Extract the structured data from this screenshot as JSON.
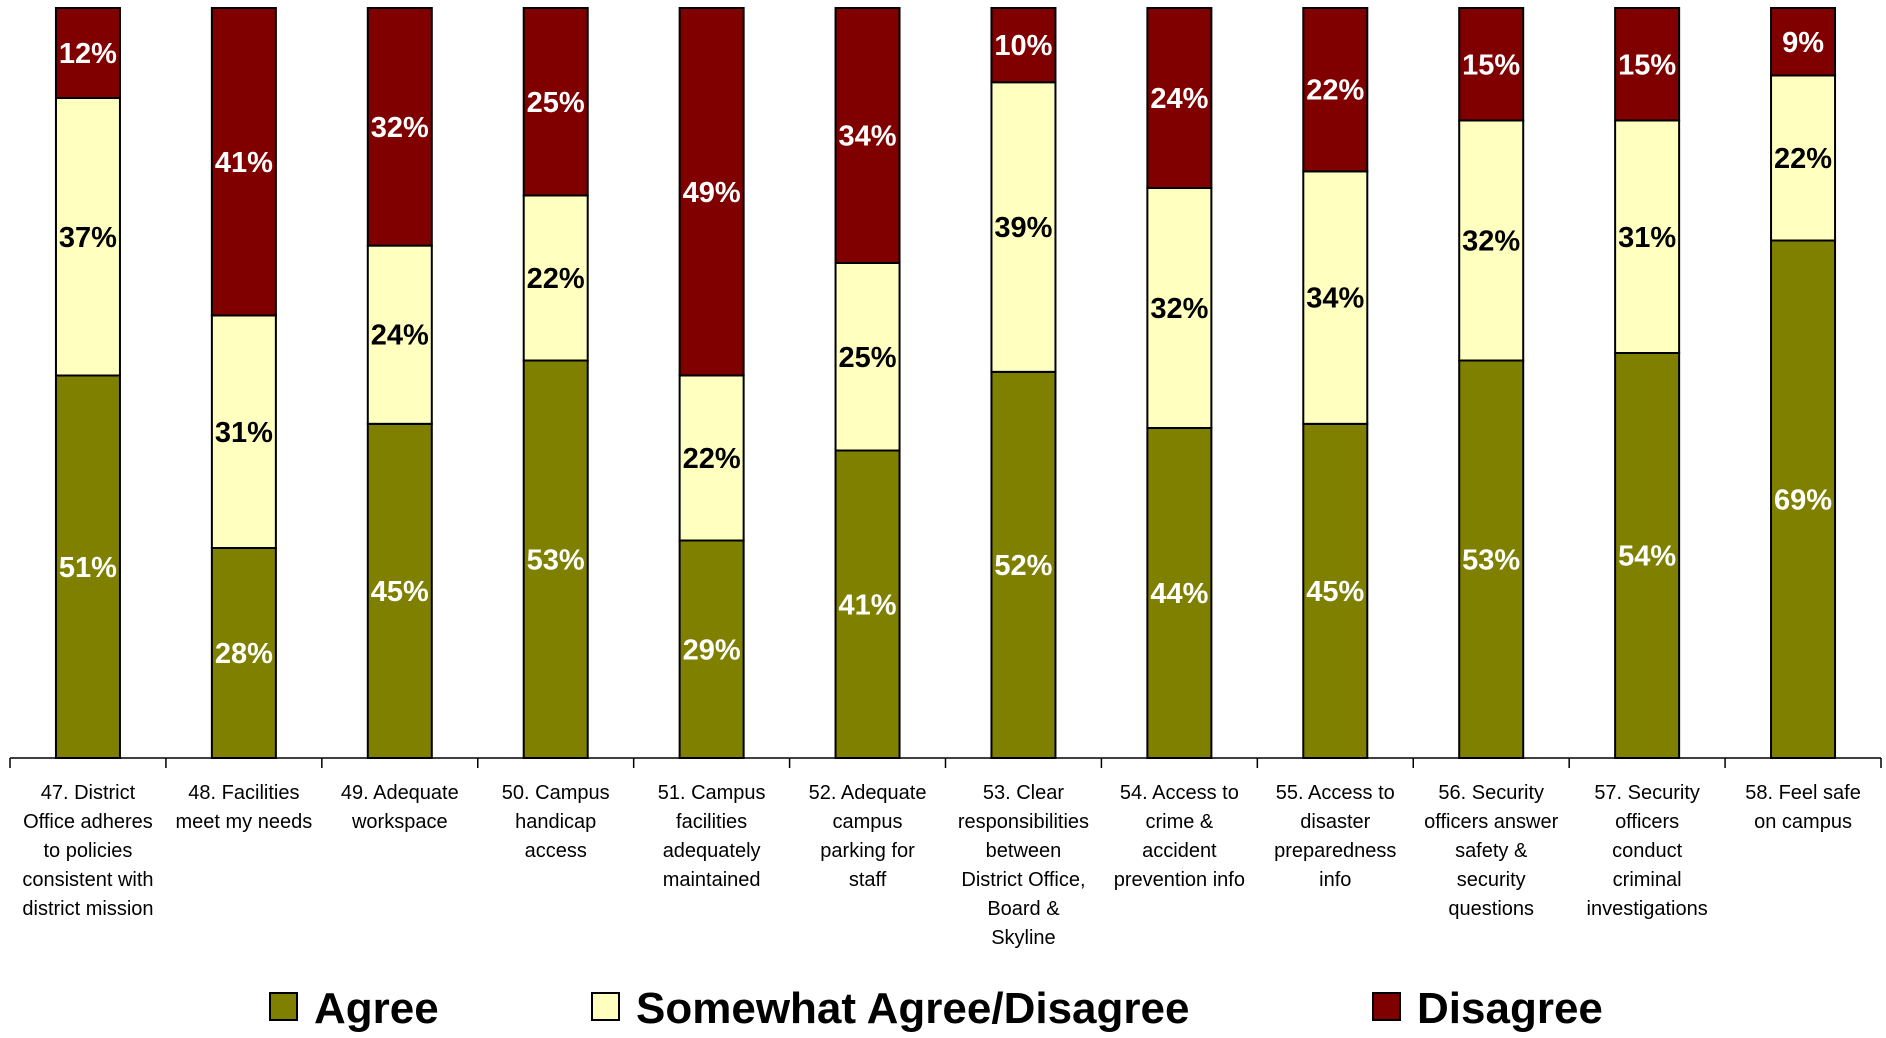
{
  "chart_data": {
    "type": "bar",
    "stacked": true,
    "percent_stacked": true,
    "grid": false,
    "legend_position": "bottom",
    "categories": [
      [
        "47. District",
        "Office adheres",
        "to policies",
        "consistent with",
        "district mission"
      ],
      [
        "48. Facilities",
        "meet my needs"
      ],
      [
        "49. Adequate",
        "workspace"
      ],
      [
        "50. Campus",
        "handicap",
        "access"
      ],
      [
        "51. Campus",
        "facilities",
        "adequately",
        "maintained"
      ],
      [
        "52. Adequate",
        "campus",
        "parking for",
        "staff"
      ],
      [
        "53. Clear",
        "responsibilities",
        "between",
        "District Office,",
        "Board &",
        "Skyline"
      ],
      [
        "54. Access to",
        "crime &",
        "accident",
        "prevention info"
      ],
      [
        "55. Access to",
        "disaster",
        "preparedness",
        "info"
      ],
      [
        "56. Security",
        "officers answer",
        "safety &",
        "security",
        "questions"
      ],
      [
        "57. Security",
        "officers",
        "conduct",
        "criminal",
        "investigations"
      ],
      [
        "58. Feel safe",
        "on campus"
      ]
    ],
    "series": [
      {
        "name": "Agree",
        "color": "#808000",
        "label_color": "#ffffff",
        "values": [
          51,
          28,
          45,
          53,
          29,
          41,
          52,
          44,
          45,
          53,
          54,
          69
        ],
        "labels": [
          "51%",
          "28%",
          "45%",
          "53%",
          "29%",
          "41%",
          "52%",
          "44%",
          "45%",
          "53%",
          "54%",
          "69%"
        ]
      },
      {
        "name": "Somewhat Agree/Disagree",
        "color": "#ffffc0",
        "label_color": "#000000",
        "values": [
          37,
          31,
          24,
          22,
          22,
          25,
          39,
          32,
          34,
          32,
          31,
          22
        ],
        "labels": [
          "37%",
          "31%",
          "24%",
          "22%",
          "22%",
          "25%",
          "39%",
          "32%",
          "34%",
          "32%",
          "31%",
          "22%"
        ]
      },
      {
        "name": "Disagree",
        "color": "#800000",
        "label_color": "#ffffff",
        "values": [
          12,
          41,
          32,
          25,
          49,
          34,
          10,
          24,
          22,
          15,
          15,
          9
        ],
        "labels": [
          "12%",
          "41%",
          "32%",
          "25%",
          "49%",
          "34%",
          "10%",
          "24%",
          "22%",
          "15%",
          "15%",
          "9%"
        ]
      }
    ]
  }
}
